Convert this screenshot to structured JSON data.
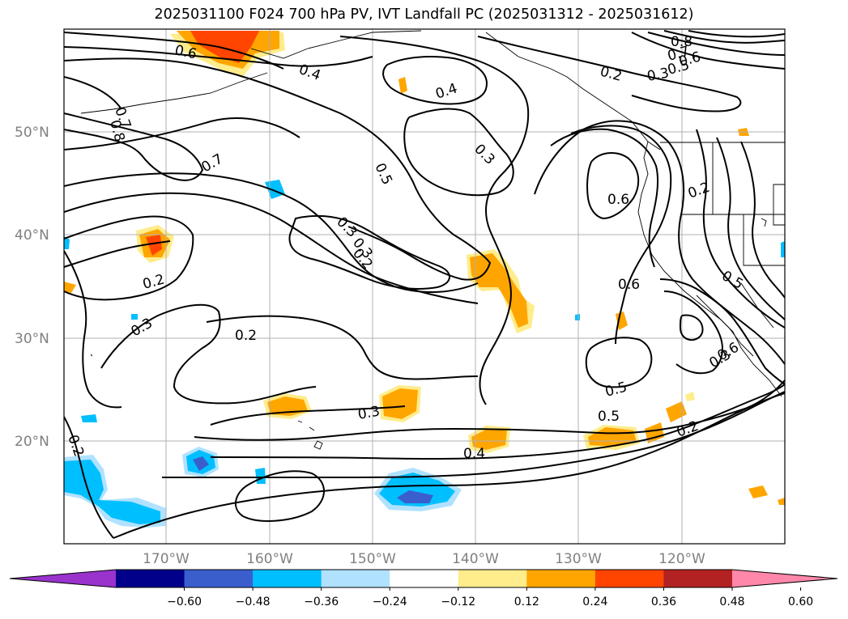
{
  "title": "2025031100 F024 700 hPa PV, IVT Landfall PC (2025031312 - 2025031612)",
  "map": {
    "lat_labels": [
      "50°N",
      "40°N",
      "30°N",
      "20°N"
    ],
    "lon_labels": [
      "170°W",
      "160°W",
      "150°W",
      "140°W",
      "130°W",
      "120°W"
    ],
    "contour_labels": [
      "0.6",
      "0.4",
      "0.4",
      "0.2",
      "0.3",
      "0.8",
      "0.7",
      "0.6",
      "0.5",
      "0.7",
      "0.8",
      "0.7",
      "0.5",
      "0.3",
      "0.2",
      "0.3",
      "0.3",
      "0.6",
      "0.2",
      "0.2",
      "0.3",
      "0.2",
      "0.6",
      "0.5",
      "0.3",
      "0.3",
      "0.4",
      "0.5",
      "0.5",
      "0.2",
      "0.6",
      "0.2"
    ]
  },
  "colorbar": {
    "ticks": [
      "−0.60",
      "−0.48",
      "−0.36",
      "−0.24",
      "−0.12",
      "0.12",
      "0.24",
      "0.36",
      "0.48",
      "0.60"
    ],
    "colors": [
      "#9933cc",
      "#00008b",
      "#3a5fcd",
      "#00bfff",
      "#b0e2ff",
      "#ffffff",
      "#ffec8b",
      "#ffa500",
      "#ff4500",
      "#b22222",
      "#ff88aa"
    ]
  }
}
